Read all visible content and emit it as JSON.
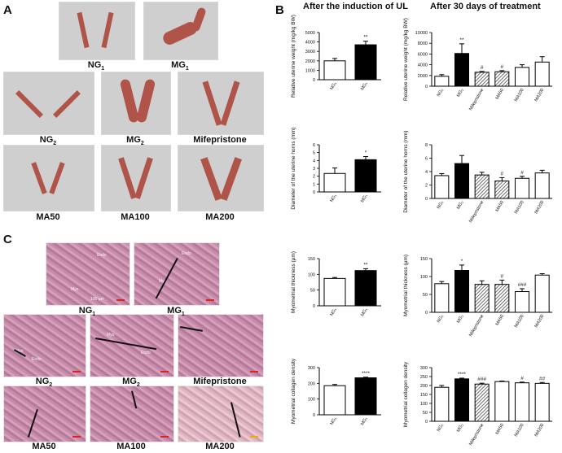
{
  "panels": {
    "a": "A",
    "b": "B",
    "c": "C"
  },
  "section_a": {
    "labels": [
      "NG",
      "MG",
      "NG",
      "MG",
      "Mifepristone",
      "MA50",
      "MA100",
      "MA200"
    ],
    "subs": [
      "1",
      "1",
      "2",
      "2",
      "",
      "",
      "",
      ""
    ]
  },
  "section_c": {
    "labels": [
      "NG",
      "MG",
      "NG",
      "MG",
      "Mifepristone",
      "MA50",
      "MA100",
      "MA200"
    ],
    "subs": [
      "1",
      "1",
      "2",
      "2",
      "",
      "",
      "",
      ""
    ],
    "tags": [
      "Endo",
      "Myo",
      "Myo",
      "Myo",
      "Endo",
      "Myo",
      "Endo"
    ],
    "scale": "100 μm"
  },
  "column_titles": {
    "left": "After the induction of UL",
    "right": "After 30 days of treatment"
  },
  "chart_data": [
    {
      "type": "bar",
      "categories": [
        "NG₁",
        "MG₁"
      ],
      "values": [
        2000,
        3700
      ],
      "errors": [
        250,
        380
      ],
      "fills": [
        "white",
        "black"
      ],
      "sig": [
        "",
        "**"
      ],
      "ylabel": "Relative uterine weight (mg/kg BW)",
      "ylim": [
        0,
        5000
      ],
      "yticks": [
        "0",
        "1000",
        "2000",
        "3000",
        "4000",
        "5000"
      ]
    },
    {
      "type": "bar",
      "categories": [
        "NG₂",
        "MG₂",
        "Mifepristone",
        "MA50",
        "MA100",
        "MA200"
      ],
      "values": [
        1850,
        6100,
        2600,
        2700,
        3500,
        4500
      ],
      "errors": [
        300,
        1800,
        150,
        200,
        500,
        1000
      ],
      "fills": [
        "white",
        "black",
        "hatch",
        "hatch",
        "white",
        "white"
      ],
      "sig": [
        "",
        "**",
        "#",
        "#",
        "",
        ""
      ],
      "ylabel": "Relative uterine weight (mg/kg BW)",
      "ylim": [
        0,
        10000
      ],
      "yticks": [
        "0",
        "2000",
        "4000",
        "6000",
        "8000",
        "10000"
      ]
    },
    {
      "type": "bar",
      "categories": [
        "NG₁",
        "MG₁"
      ],
      "values": [
        2.35,
        4.1
      ],
      "errors": [
        0.7,
        0.4
      ],
      "fills": [
        "white",
        "black"
      ],
      "sig": [
        "",
        "*"
      ],
      "ylabel": "Diameter of the uterine horns (mm)",
      "ylim": [
        0,
        6
      ],
      "yticks": [
        "0",
        "1",
        "2",
        "3",
        "4",
        "5",
        "6"
      ]
    },
    {
      "type": "bar",
      "categories": [
        "NG₂",
        "MG₂",
        "Mifepristone",
        "MA50",
        "MA100",
        "MA200"
      ],
      "values": [
        3.4,
        5.2,
        3.5,
        2.6,
        3.0,
        3.8
      ],
      "errors": [
        0.3,
        1.2,
        0.4,
        0.5,
        0.3,
        0.4
      ],
      "fills": [
        "white",
        "black",
        "hatch",
        "hatch",
        "white",
        "white"
      ],
      "sig": [
        "",
        "",
        "",
        "#",
        "#",
        ""
      ],
      "ylabel": "Diameter of the uterine horns (mm)",
      "ylim": [
        0,
        8
      ],
      "yticks": [
        "0",
        "2",
        "4",
        "6",
        "8"
      ]
    },
    {
      "type": "bar",
      "categories": [
        "NG₁",
        "MG₁"
      ],
      "values": [
        87,
        112
      ],
      "errors": [
        3,
        6
      ],
      "fills": [
        "white",
        "black"
      ],
      "sig": [
        "",
        "**"
      ],
      "ylabel": "Myometrial thickness (μm)",
      "ylim": [
        0,
        150
      ],
      "yticks": [
        "0",
        "50",
        "100",
        "150"
      ]
    },
    {
      "type": "bar",
      "categories": [
        "NG₂",
        "MG₂",
        "Mifepristone",
        "MA50",
        "MA100",
        "MA200"
      ],
      "values": [
        80,
        117,
        78,
        78,
        58,
        104
      ],
      "errors": [
        6,
        15,
        10,
        12,
        8,
        4
      ],
      "fills": [
        "white",
        "black",
        "hatch",
        "hatch",
        "white",
        "white"
      ],
      "sig": [
        "",
        "*",
        "",
        "#",
        "###",
        ""
      ],
      "ylabel": "Myometrial thickness (μm)",
      "ylim": [
        0,
        150
      ],
      "yticks": [
        "0",
        "50",
        "100",
        "150"
      ]
    },
    {
      "type": "bar",
      "categories": [
        "NG₁",
        "MG₁"
      ],
      "values": [
        185,
        235
      ],
      "errors": [
        8,
        4
      ],
      "fills": [
        "white",
        "black"
      ],
      "sig": [
        "",
        "****"
      ],
      "ylabel": "Myometrial collagen density",
      "ylim": [
        0,
        300
      ],
      "yticks": [
        "0",
        "100",
        "200",
        "300"
      ]
    },
    {
      "type": "bar",
      "categories": [
        "NG₂",
        "MG₂",
        "Mifepristone",
        "MA50",
        "MA100",
        "MA200"
      ],
      "values": [
        190,
        237,
        208,
        222,
        215,
        212
      ],
      "errors": [
        10,
        4,
        5,
        3,
        4,
        5
      ],
      "fills": [
        "white",
        "black",
        "hatch",
        "white",
        "white",
        "white"
      ],
      "sig": [
        "",
        "****",
        "###",
        "",
        "#",
        "##"
      ],
      "ylabel": "Myometrial collagen density",
      "ylim": [
        0,
        300
      ],
      "yticks": [
        "0",
        "50",
        "100",
        "150",
        "200",
        "250",
        "300"
      ]
    }
  ]
}
